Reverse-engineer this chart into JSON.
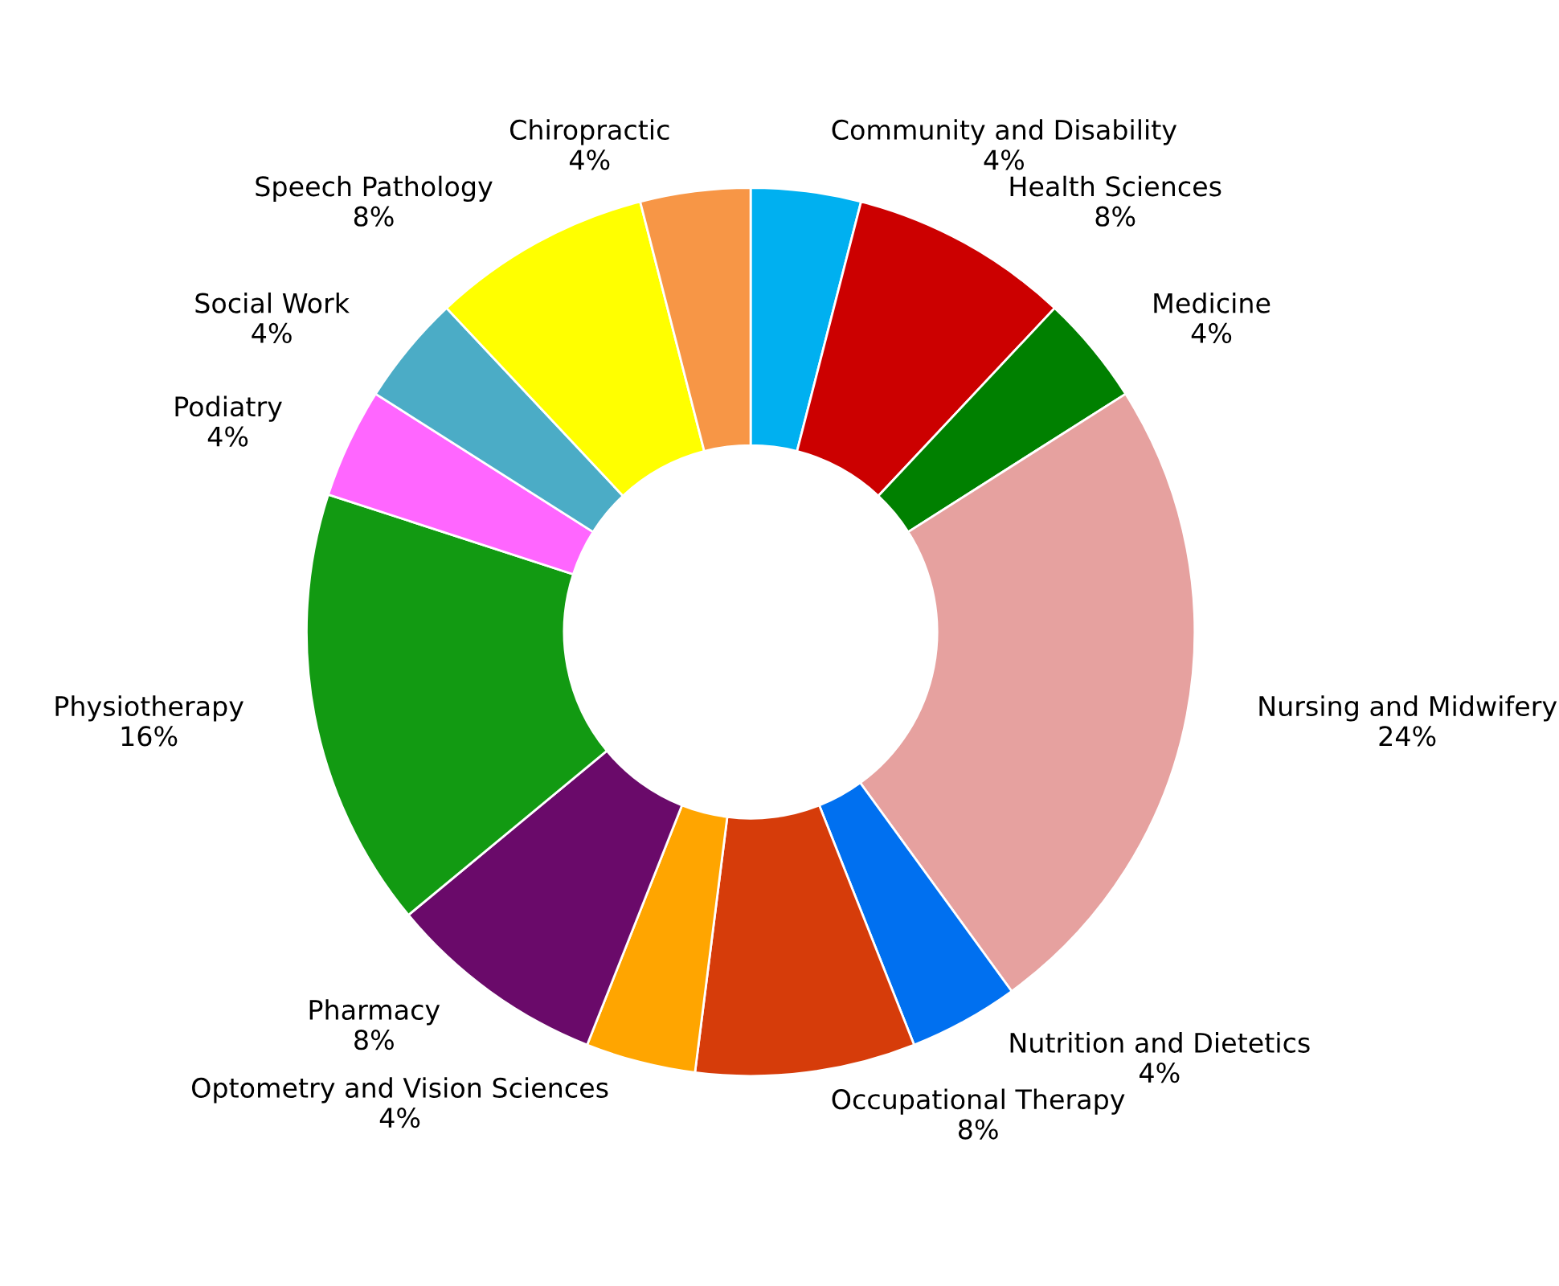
{
  "chart_data": {
    "type": "donut",
    "categories": [
      "Community and Disability",
      "Health Sciences",
      "Medicine",
      "Nursing and Midwifery",
      "Nutrition and Dietetics",
      "Occupational Therapy",
      "Optometry and Vision Sciences",
      "Pharmacy",
      "Physiotherapy",
      "Podiatry",
      "Social Work",
      "Speech Pathology",
      "Chiropractic"
    ],
    "values": [
      4,
      8,
      4,
      24,
      4,
      8,
      4,
      8,
      16,
      4,
      4,
      8,
      4
    ],
    "value_labels": [
      "4%",
      "8%",
      "4%",
      "24%",
      "4%",
      "8%",
      "4%",
      "8%",
      "16%",
      "4%",
      "4%",
      "8%",
      "4%"
    ],
    "colors": [
      "#00b0f0",
      "#cc0000",
      "#008000",
      "#e6a19f",
      "#0070f0",
      "#d63c0a",
      "#ffa500",
      "#6a0a6a",
      "#129a12",
      "#ff66ff",
      "#4bacc6",
      "#ffff00",
      "#f79646"
    ],
    "legend": false
  }
}
